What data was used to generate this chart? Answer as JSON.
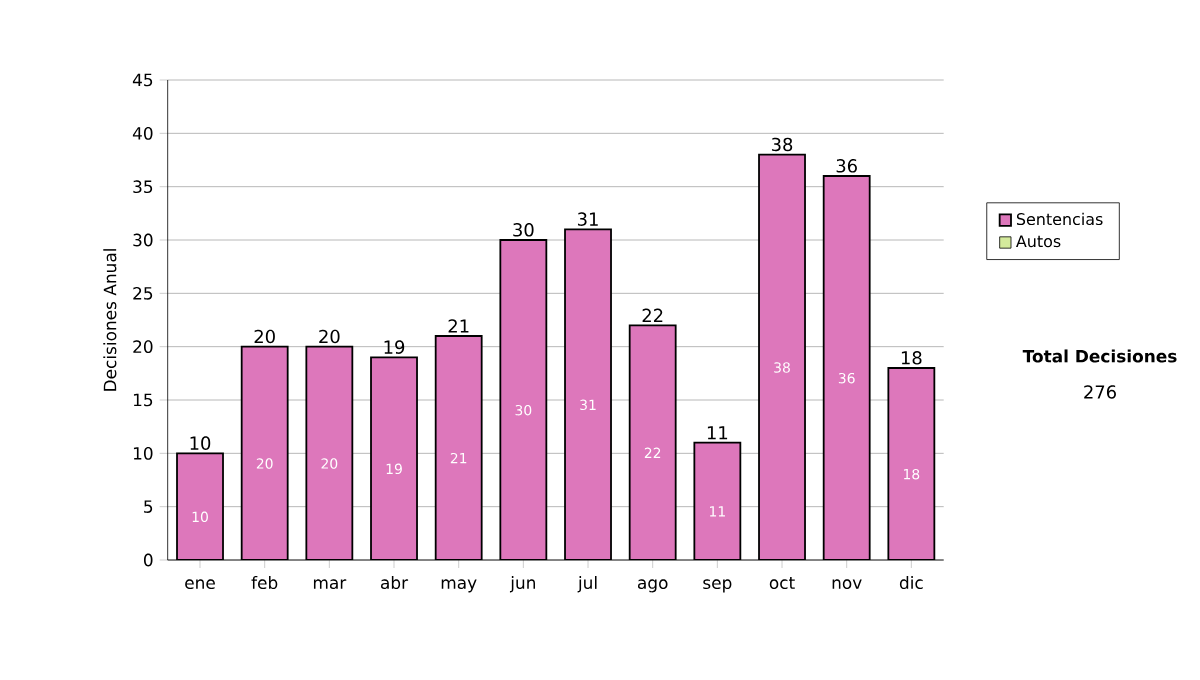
{
  "chart_data": {
    "type": "bar",
    "ylabel": "Decisiones Anual",
    "categories": [
      "ene",
      "feb",
      "mar",
      "abr",
      "may",
      "jun",
      "jul",
      "ago",
      "sep",
      "oct",
      "nov",
      "dic"
    ],
    "series": [
      {
        "name": "Sentencias",
        "color": "#dd77bb",
        "values": [
          10,
          20,
          20,
          19,
          21,
          30,
          31,
          22,
          11,
          38,
          36,
          18
        ]
      },
      {
        "name": "Autos",
        "color": "#d4ea9c",
        "values": [
          null,
          null,
          null,
          null,
          null,
          null,
          null,
          null,
          null,
          null,
          null,
          null
        ]
      }
    ],
    "stacked": true,
    "data_labels": true,
    "totals": [
      "10",
      "20",
      "20",
      "19",
      "21",
      "30",
      "31",
      "22",
      "11",
      "38",
      "36",
      "18"
    ],
    "ylim": [
      0,
      45
    ],
    "yticks": [
      0,
      5,
      10,
      15,
      20,
      25,
      30,
      35,
      40,
      45
    ],
    "grid": "y",
    "legend": "right",
    "annotations": [
      "Total Decisiones",
      "276"
    ]
  }
}
